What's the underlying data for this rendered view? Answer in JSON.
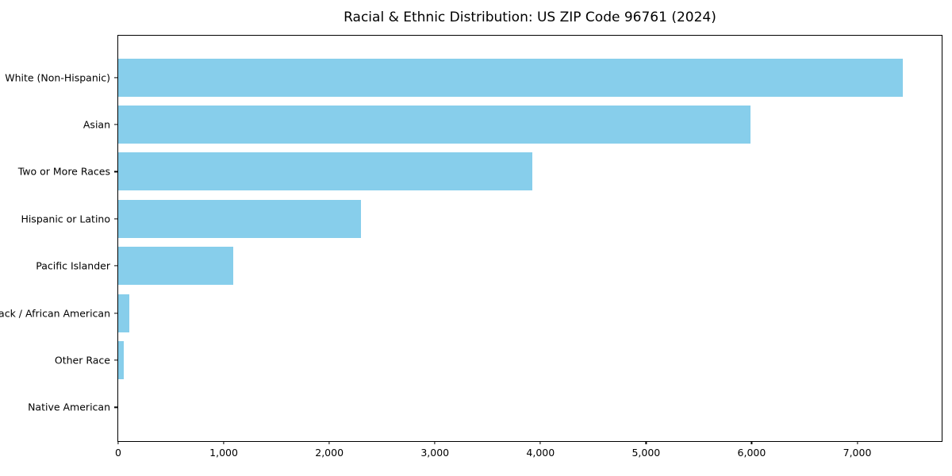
{
  "page": {
    "background": "#ffffff"
  },
  "chart_data": {
    "type": "bar",
    "orientation": "horizontal",
    "title": "Racial & Ethnic Distribution: US ZIP Code 96761 (2024)",
    "categories": [
      "White (Non-Hispanic)",
      "Asian",
      "Two or More Races",
      "Hispanic or Latino",
      "Pacific Islander",
      "Black / African American",
      "Other Race",
      "Native American"
    ],
    "values": [
      7430,
      5990,
      3920,
      2300,
      1090,
      105,
      50,
      0
    ],
    "xlabel": "",
    "ylabel": "",
    "xlim": [
      0,
      7800
    ],
    "xticks": [
      {
        "value": 0,
        "label": "0"
      },
      {
        "value": 1000,
        "label": "1,000"
      },
      {
        "value": 2000,
        "label": "2,000"
      },
      {
        "value": 3000,
        "label": "3,000"
      },
      {
        "value": 4000,
        "label": "4,000"
      },
      {
        "value": 5000,
        "label": "5,000"
      },
      {
        "value": 6000,
        "label": "6,000"
      },
      {
        "value": 7000,
        "label": "7,000"
      }
    ],
    "grid": false,
    "legend": "none",
    "bar_color": "#87CEEB",
    "axis_color": "#000000",
    "text_color": "#000000",
    "plot_background": "#ffffff"
  }
}
